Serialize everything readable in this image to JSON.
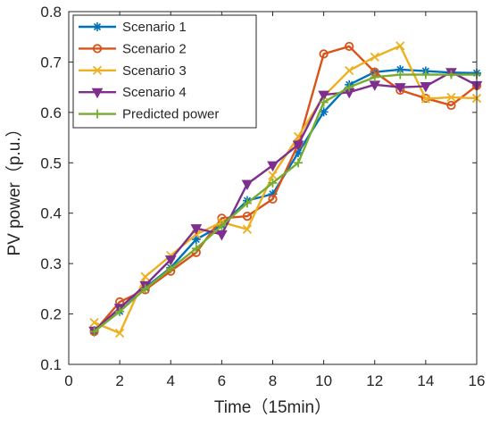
{
  "chart_data": {
    "type": "line",
    "title": "",
    "xlabel": "Time（15min）",
    "ylabel": "PV power（p.u.）",
    "xlim": [
      0,
      16
    ],
    "ylim": [
      0.1,
      0.8
    ],
    "xticks": [
      0,
      2,
      4,
      6,
      8,
      10,
      12,
      14,
      16
    ],
    "xtick_labels": [
      "0",
      "2",
      "4",
      "6",
      "8",
      "10",
      "12",
      "14",
      "16"
    ],
    "yticks": [
      0.1,
      0.2,
      0.3,
      0.4,
      0.5,
      0.6,
      0.7,
      0.8
    ],
    "ytick_labels": [
      "0.1",
      "0.2",
      "0.3",
      "0.4",
      "0.5",
      "0.6",
      "0.7",
      "0.8"
    ],
    "grid": false,
    "legend_position": "top-left",
    "x": [
      1,
      2,
      3,
      4,
      5,
      6,
      7,
      8,
      9,
      10,
      11,
      12,
      13,
      14,
      15,
      16
    ],
    "series": [
      {
        "name": "Scenario 1",
        "color": "#0072BD",
        "marker": "asterisk",
        "values": [
          0.167,
          0.205,
          0.252,
          0.292,
          0.348,
          0.376,
          0.425,
          0.438,
          0.52,
          0.601,
          0.655,
          0.68,
          0.685,
          0.682,
          0.679,
          0.678
        ]
      },
      {
        "name": "Scenario 2",
        "color": "#D95319",
        "marker": "circle",
        "values": [
          0.165,
          0.224,
          0.248,
          0.285,
          0.322,
          0.39,
          0.394,
          0.428,
          0.537,
          0.716,
          0.731,
          0.68,
          0.644,
          0.628,
          0.614,
          0.653
        ]
      },
      {
        "name": "Scenario 3",
        "color": "#EDB120",
        "marker": "x",
        "values": [
          0.183,
          0.162,
          0.274,
          0.316,
          0.358,
          0.382,
          0.368,
          0.475,
          0.552,
          0.632,
          0.683,
          0.71,
          0.732,
          0.627,
          0.63,
          0.628
        ]
      },
      {
        "name": "Scenario 4",
        "color": "#7E2F8E",
        "marker": "triangle-down",
        "values": [
          0.167,
          0.212,
          0.257,
          0.308,
          0.37,
          0.358,
          0.458,
          0.495,
          0.536,
          0.635,
          0.64,
          0.655,
          0.65,
          0.652,
          0.68,
          0.654
        ]
      },
      {
        "name": "Predicted power",
        "color": "#77AC30",
        "marker": "plus",
        "values": [
          0.165,
          0.205,
          0.25,
          0.29,
          0.33,
          0.375,
          0.42,
          0.46,
          0.5,
          0.62,
          0.65,
          0.67,
          0.675,
          0.675,
          0.675,
          0.675
        ]
      }
    ]
  }
}
